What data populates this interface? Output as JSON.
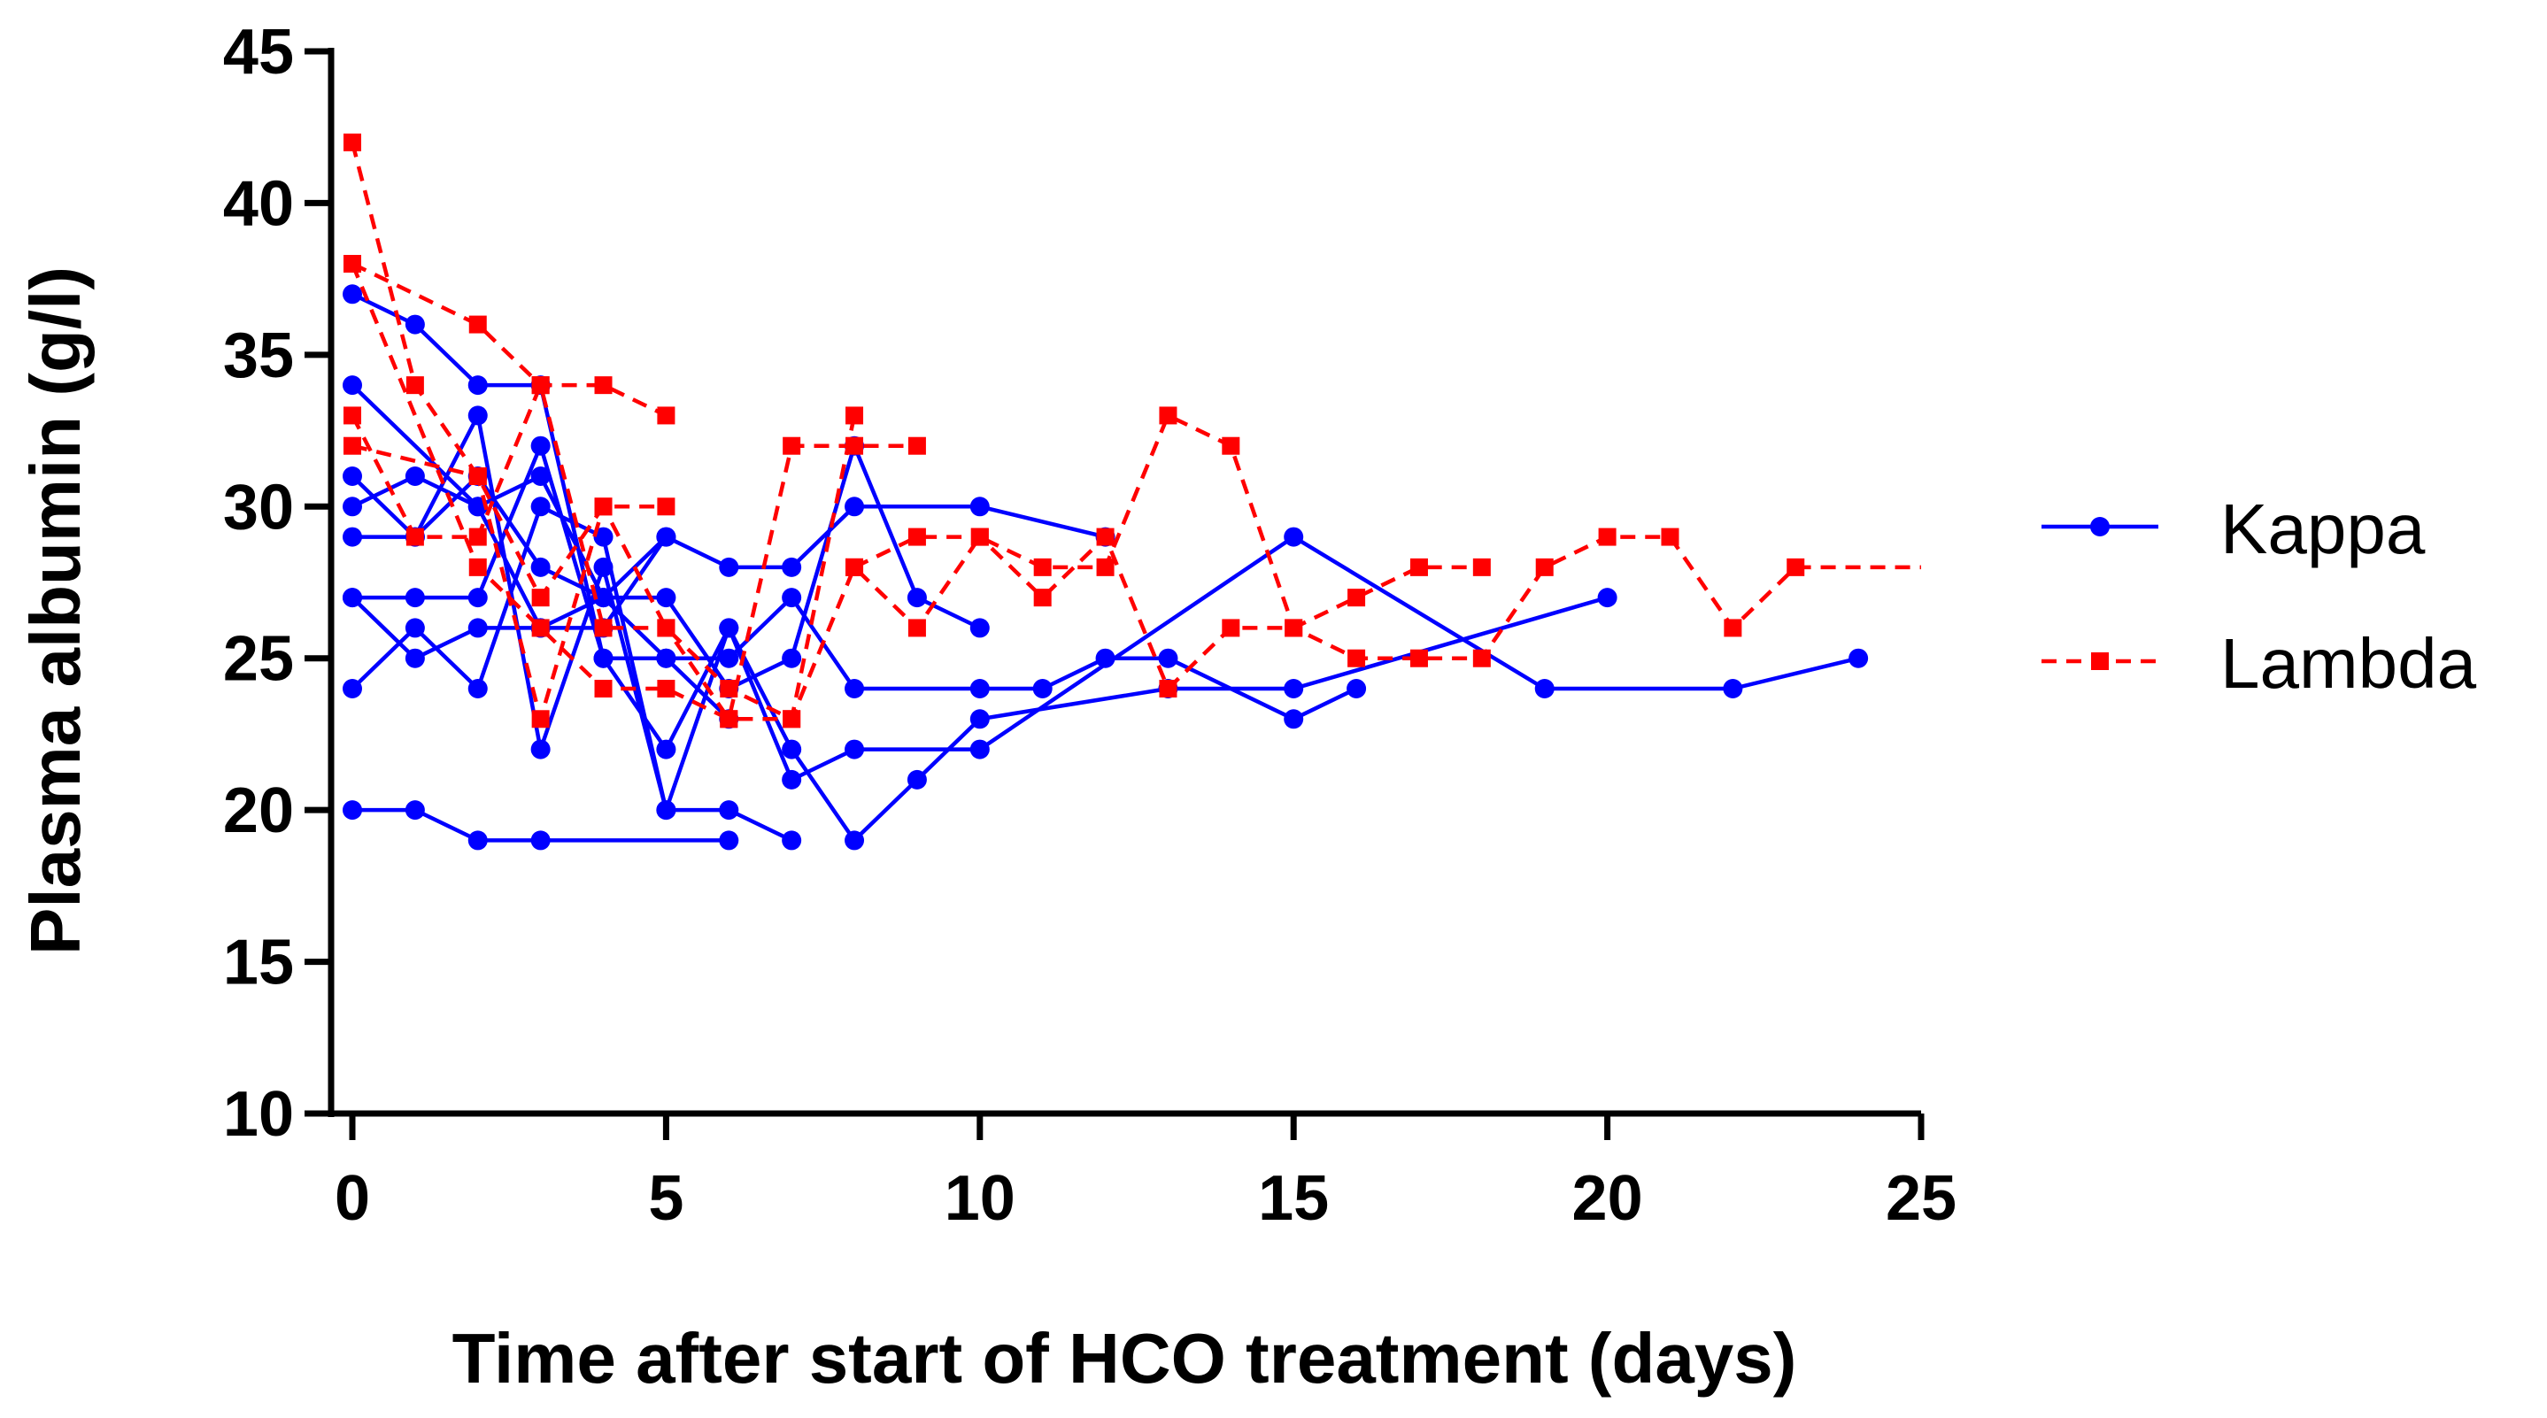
{
  "chart_data": {
    "type": "line",
    "title": "",
    "xlabel": "Time after start of HCO treatment (days)",
    "ylabel": "Plasma albumin (g/l)",
    "xlim": [
      0,
      25
    ],
    "ylim": [
      10,
      45
    ],
    "xticks": [
      "0",
      "5",
      "10",
      "15",
      "20",
      "25"
    ],
    "yticks": [
      "10",
      "15",
      "20",
      "25",
      "30",
      "35",
      "40",
      "45"
    ],
    "grid": false,
    "legend_position": "right",
    "groups": [
      {
        "name": "Kappa",
        "color": "#0000ff",
        "line_style": "solid",
        "marker": "circle",
        "series": [
          {
            "x": [
              0,
              1,
              2,
              3,
              4,
              5,
              6
            ],
            "y": [
              37,
              36,
              34,
              34,
              25,
              25,
              23
            ]
          },
          {
            "x": [
              0,
              2,
              3,
              4,
              5,
              6,
              7,
              8,
              9,
              10
            ],
            "y": [
              34,
              30,
              26,
              27,
              27,
              24,
              25,
              32,
              27,
              26
            ]
          },
          {
            "x": [
              0,
              1,
              2,
              3,
              4,
              5,
              6,
              7
            ],
            "y": [
              31,
              29,
              33,
              22,
              28,
              20,
              20,
              19
            ]
          },
          {
            "x": [
              0,
              1,
              2,
              3,
              4,
              5,
              6,
              7,
              8,
              10,
              12
            ],
            "y": [
              30,
              31,
              30,
              31,
              27,
              29,
              28,
              28,
              30,
              30,
              29
            ]
          },
          {
            "x": [
              0,
              1,
              2,
              3,
              4,
              5,
              6,
              7,
              8,
              10,
              11,
              12,
              13,
              15,
              16
            ],
            "y": [
              29,
              29,
              31,
              28,
              27,
              25,
              25,
              27,
              24,
              24,
              24,
              25,
              25,
              23,
              24
            ]
          },
          {
            "x": [
              0,
              1,
              2,
              3,
              4,
              5,
              6,
              7,
              8,
              10,
              15,
              19,
              22,
              24
            ],
            "y": [
              27,
              27,
              27,
              32,
              25,
              22,
              26,
              21,
              22,
              22,
              29,
              24,
              24,
              25
            ]
          },
          {
            "x": [
              0,
              1,
              2,
              3,
              4,
              5,
              6,
              7,
              8,
              9,
              10,
              13,
              15,
              20
            ],
            "y": [
              24,
              26,
              24,
              30,
              29,
              20,
              26,
              22,
              19,
              21,
              23,
              24,
              24,
              27
            ]
          },
          {
            "x": [
              0,
              1,
              2,
              3,
              6
            ],
            "y": [
              20,
              20,
              19,
              19,
              19
            ]
          },
          {
            "x": [
              0,
              1,
              2,
              3,
              4,
              5
            ],
            "y": [
              27,
              25,
              26,
              26,
              26,
              29
            ]
          }
        ]
      },
      {
        "name": "Lambda",
        "color": "#ff0000",
        "line_style": "dashed",
        "marker": "square",
        "series": [
          {
            "x": [
              0,
              1,
              2,
              3,
              4,
              5
            ],
            "y": [
              42,
              34,
              31,
              27,
              30,
              30
            ]
          },
          {
            "x": [
              0,
              2,
              3,
              4,
              5
            ],
            "y": [
              38,
              36,
              34,
              34,
              33
            ]
          },
          {
            "x": [
              0,
              1,
              2,
              3,
              4,
              5,
              6,
              7,
              8,
              9
            ],
            "y": [
              33,
              29,
              29,
              34,
              26,
              26,
              23,
              32,
              32,
              32
            ]
          },
          {
            "x": [
              0,
              2,
              3,
              4,
              5,
              6,
              7,
              8
            ],
            "y": [
              32,
              31,
              23,
              30,
              26,
              24,
              23,
              33
            ]
          },
          {
            "x": [
              0,
              2,
              3,
              4,
              5,
              6,
              7,
              8,
              9,
              10,
              11,
              12,
              13,
              14,
              15,
              16,
              17,
              18,
              19,
              20,
              21,
              22,
              23,
              25
            ],
            "y": [
              38,
              28,
              26,
              24,
              24,
              23,
              23,
              28,
              26,
              29,
              28,
              28,
              33,
              32,
              26,
              25,
              25,
              25,
              28,
              29,
              29,
              26,
              28,
              28
            ]
          },
          {
            "x": [
              8,
              9,
              10,
              11,
              12,
              13,
              14,
              15,
              16,
              17,
              18
            ],
            "y": [
              28,
              29,
              29,
              27,
              29,
              24,
              26,
              26,
              27,
              28,
              28
            ]
          }
        ]
      }
    ]
  }
}
